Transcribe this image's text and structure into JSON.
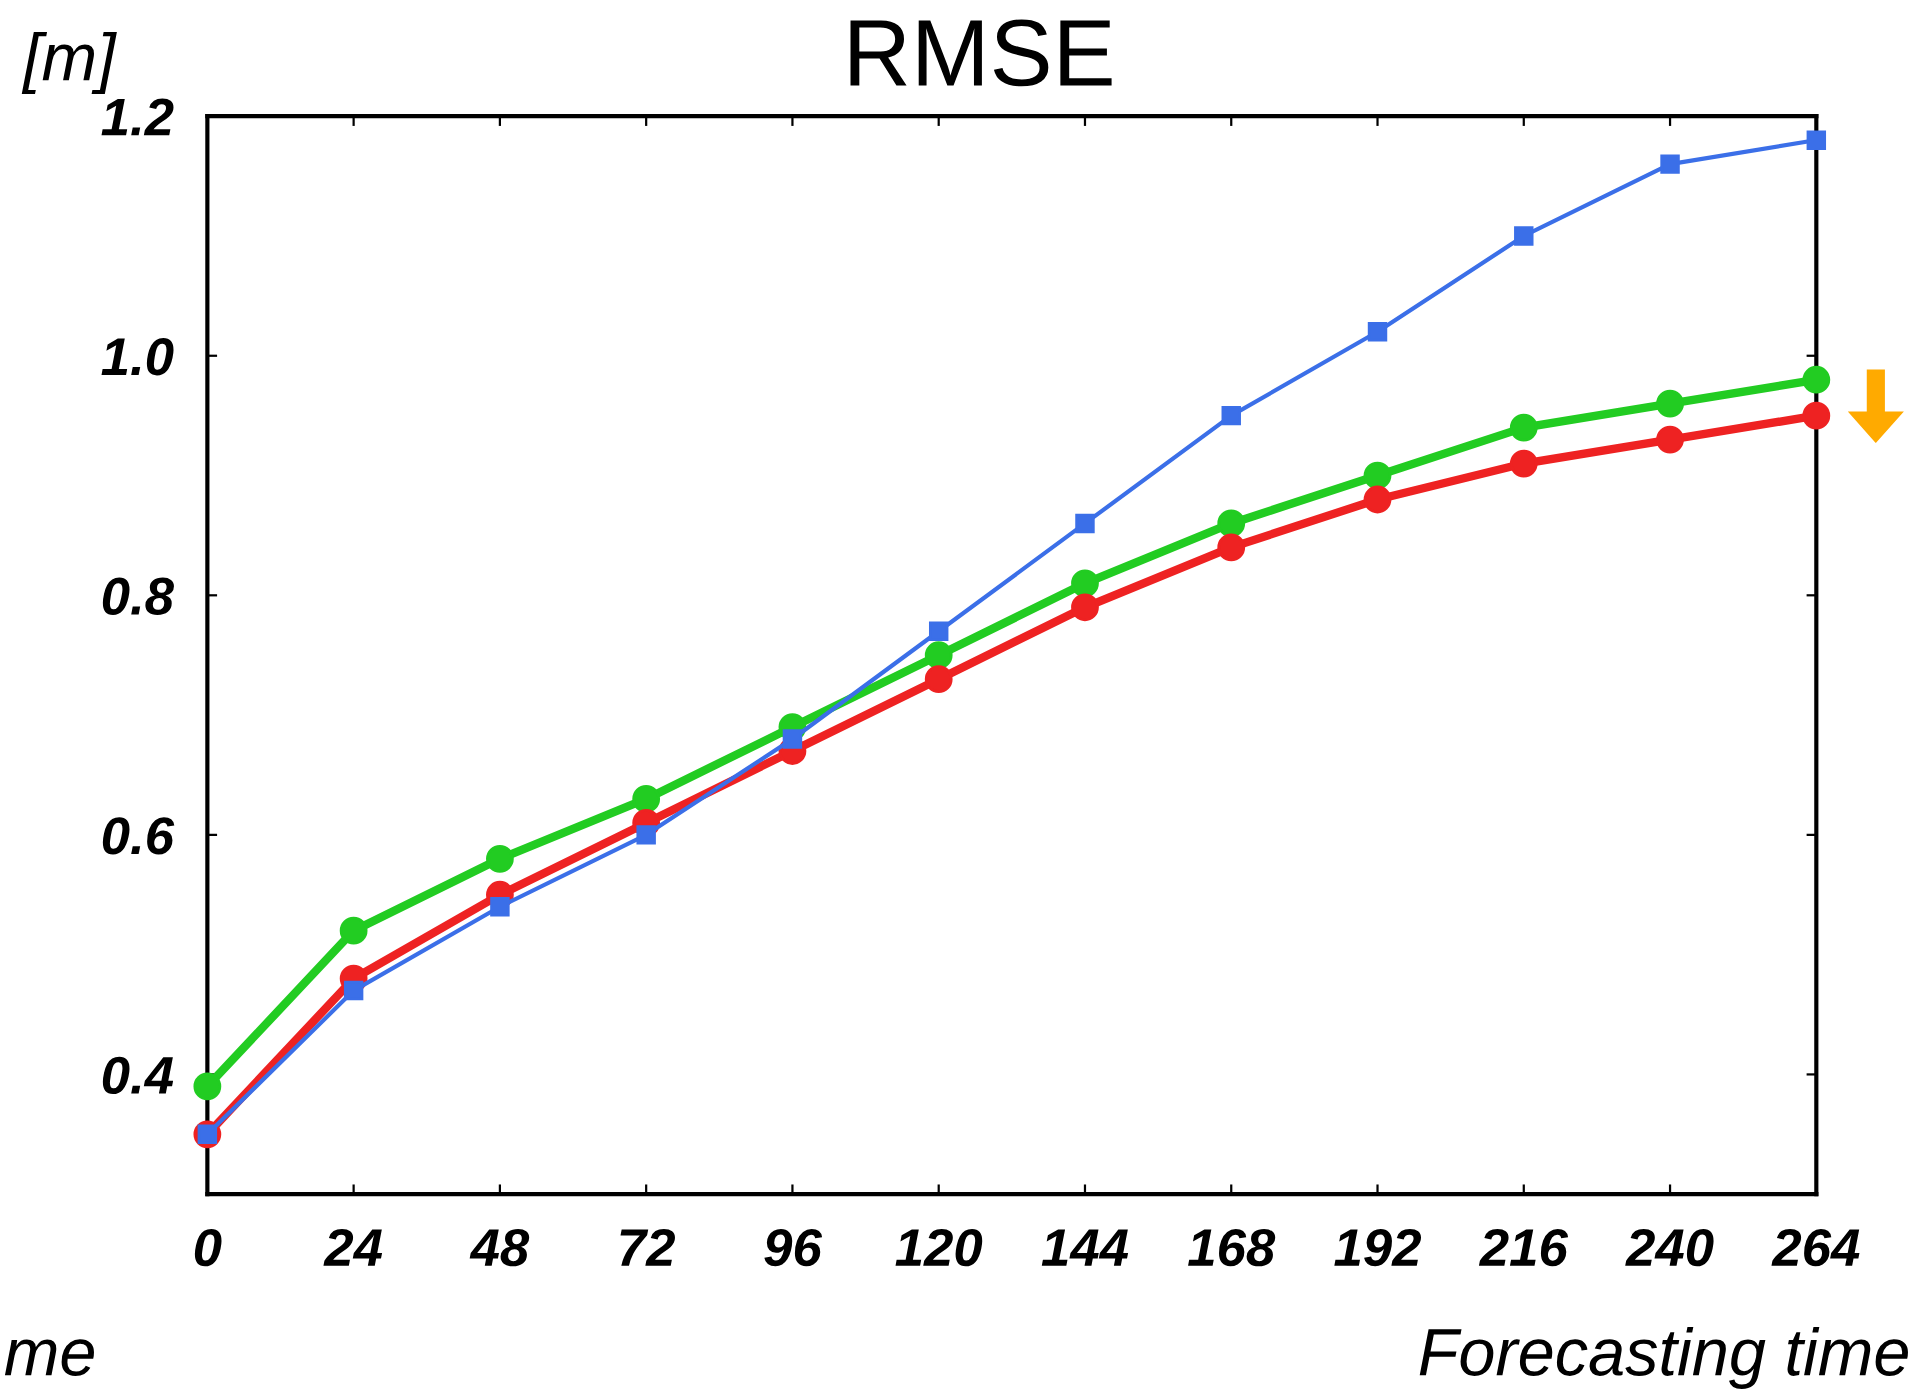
{
  "chart_data": {
    "type": "line",
    "title": "RMSE",
    "ylabel": "[m]",
    "xlabel": "Forecasting time",
    "annotations": [
      "me"
    ],
    "x": [
      0,
      24,
      48,
      72,
      96,
      120,
      144,
      168,
      192,
      216,
      240,
      264
    ],
    "series": [
      {
        "color": "#3b6fe8",
        "marker": "square",
        "values": [
          0.35,
          0.47,
          0.54,
          0.6,
          0.68,
          0.77,
          0.86,
          0.95,
          1.02,
          1.1,
          1.16,
          1.18
        ]
      },
      {
        "color": "#22cc22",
        "marker": "circle",
        "values": [
          0.39,
          0.52,
          0.58,
          0.63,
          0.69,
          0.75,
          0.81,
          0.86,
          0.9,
          0.94,
          0.96,
          0.98
        ]
      },
      {
        "color": "#ee2222",
        "marker": "circle",
        "values": [
          0.35,
          0.48,
          0.55,
          0.61,
          0.67,
          0.73,
          0.79,
          0.84,
          0.88,
          0.91,
          0.93,
          0.95
        ]
      }
    ],
    "xlim": [
      0,
      264
    ],
    "xticks": [
      0,
      24,
      48,
      72,
      96,
      120,
      144,
      168,
      192,
      216,
      240,
      264
    ],
    "ylim": [
      0.3,
      1.2
    ],
    "yticks": [
      0.4,
      0.6,
      0.8,
      {
        "value": 1.0,
        "label": "1.0"
      },
      1.2
    ],
    "grid": false,
    "legend": false
  }
}
